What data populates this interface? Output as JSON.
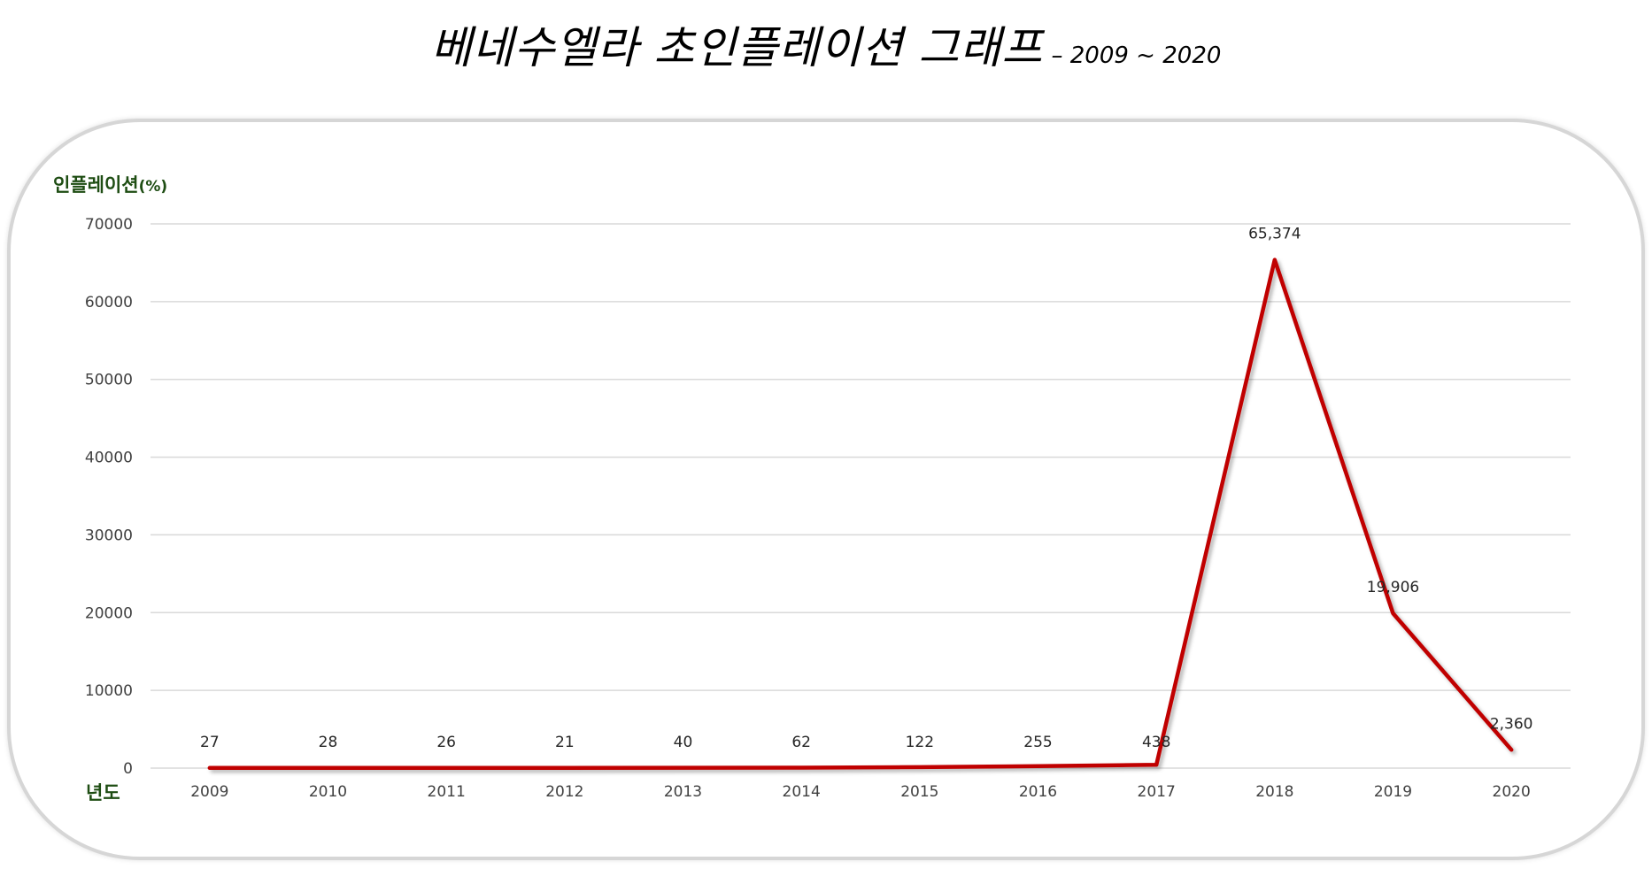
{
  "chart_data": {
    "type": "line",
    "title": "베네수엘라 초인플레이션 그래프",
    "subtitle": "– 2009 ~ 2020",
    "xlabel": "년도",
    "ylabel": "인플레이션",
    "ylabel_unit": "(%)",
    "categories": [
      "2009",
      "2010",
      "2011",
      "2012",
      "2013",
      "2014",
      "2015",
      "2016",
      "2017",
      "2018",
      "2019",
      "2020"
    ],
    "series": [
      {
        "values": [
          27,
          28,
          26,
          21,
          40,
          62,
          122,
          255,
          438,
          65374,
          19906,
          2360
        ],
        "labels": [
          "27",
          "28",
          "26",
          "21",
          "40",
          "62",
          "122",
          "255",
          "438",
          "65,374",
          "19,906",
          "2,360"
        ],
        "color": "#c00000"
      }
    ],
    "ylim": [
      0,
      70000
    ],
    "yticks": [
      "0",
      "10000",
      "20000",
      "30000",
      "40000",
      "50000",
      "60000",
      "70000"
    ],
    "grid": true,
    "legend": "none"
  }
}
